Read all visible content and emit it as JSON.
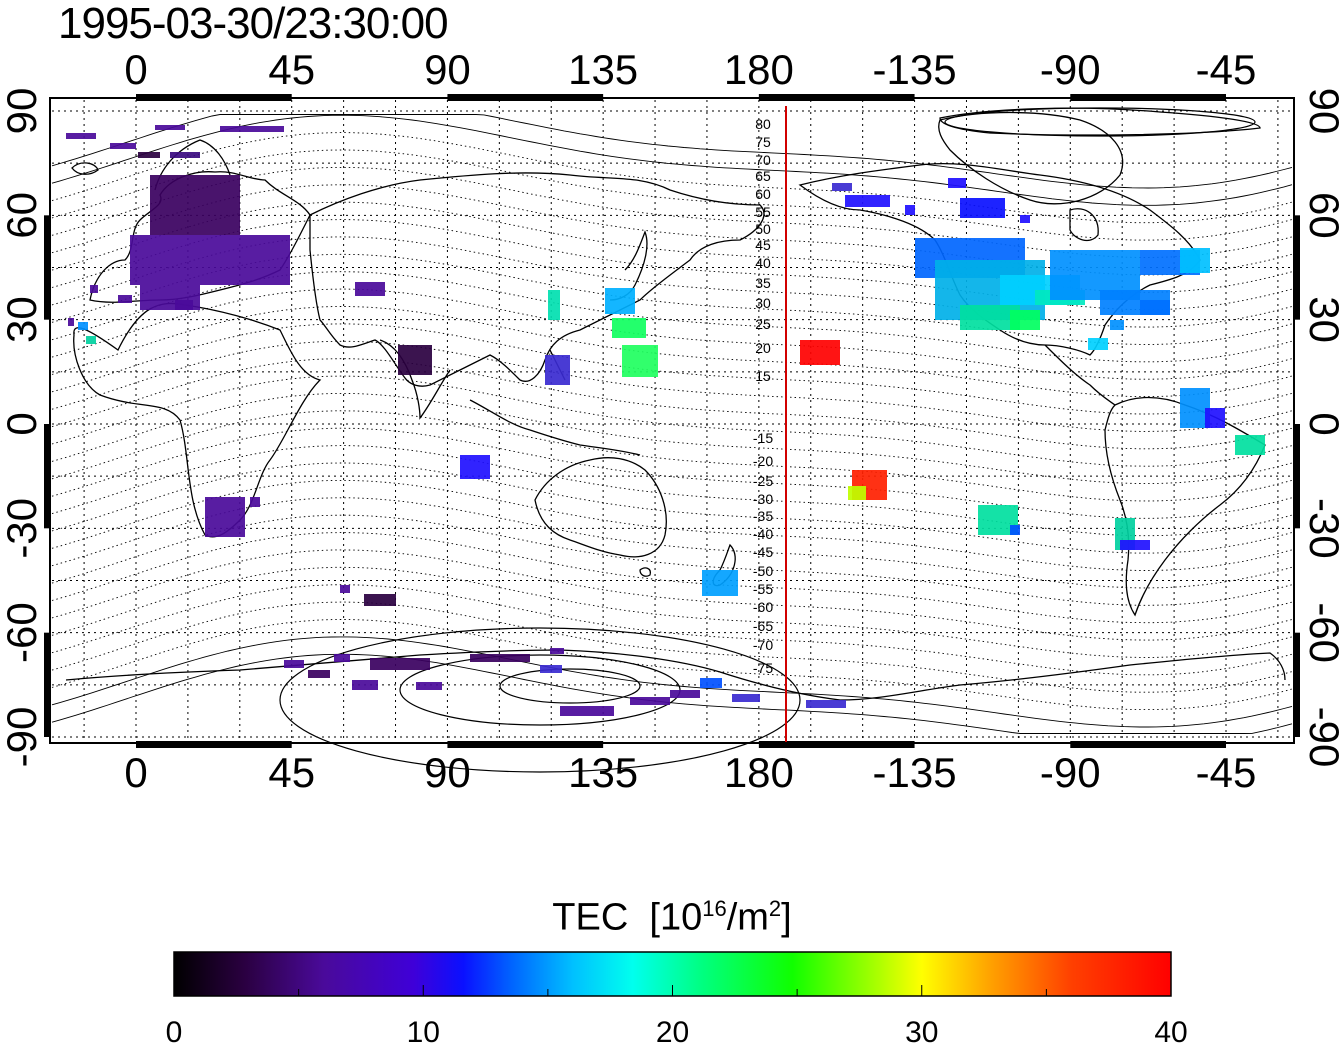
{
  "title": "1995-03-30/23:30:00",
  "map": {
    "lon_ticks": [
      "0",
      "45",
      "90",
      "135",
      "180",
      "-135",
      "-90",
      "-45"
    ],
    "lat_ticks": [
      "90",
      "60",
      "30",
      "0",
      "-30",
      "-60",
      "-90"
    ],
    "grid": true,
    "red_line_lon": 187,
    "magnetic_lat_labels": [
      "80",
      "75",
      "70",
      "65",
      "60",
      "55",
      "50",
      "45",
      "40",
      "35",
      "30",
      "25",
      "20",
      "15",
      "-15",
      "-20",
      "-25",
      "-30",
      "-35",
      "-40",
      "-45",
      "-50",
      "-55",
      "-60",
      "-65",
      "-70",
      "-75"
    ]
  },
  "colorbar": {
    "label": "TEC",
    "unit_prefix": "[10",
    "unit_exp": "16",
    "unit_mid": "/m",
    "unit_exp2": "2",
    "unit_suffix": "]",
    "ticks": [
      "0",
      "10",
      "20",
      "30",
      "40"
    ],
    "min": 0,
    "max": 40
  }
}
